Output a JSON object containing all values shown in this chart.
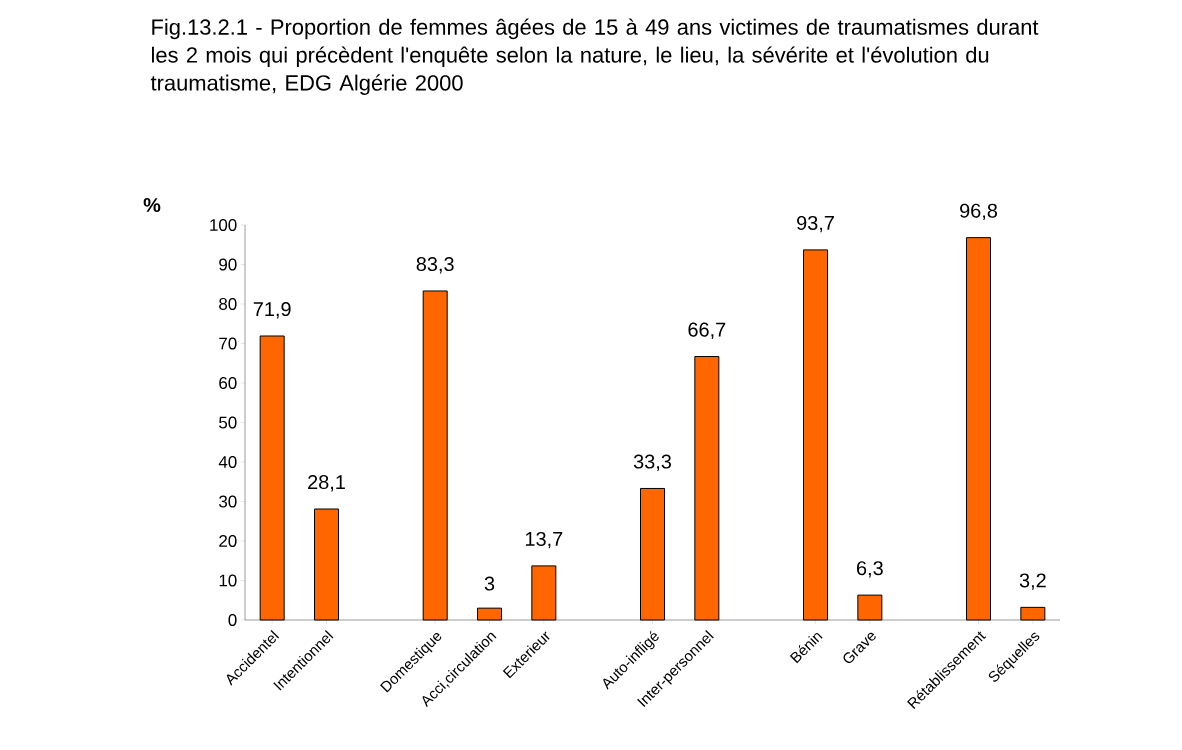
{
  "chart_data": {
    "type": "bar",
    "title": "Fig.13.2.1 - Proportion de femmes âgées de 15 à 49 ans victimes de traumatismes durant les 2 mois qui précèdent l'enquête selon la nature, le lieu, la sévérite et l'évolution du traumatisme, EDG Algérie 2000",
    "ylabel": "%",
    "categories": [
      "Accidentel",
      "Intentionnel",
      null,
      "Domestique",
      "Acci,circulation",
      "Exterieur",
      null,
      "Auto-infligé",
      "Inter-personnel",
      null,
      "Bénin",
      "Grave",
      null,
      "Rétablissement",
      "Séquelles"
    ],
    "values": [
      71.9,
      28.1,
      null,
      83.3,
      3,
      13.7,
      null,
      33.3,
      66.7,
      null,
      93.7,
      6.3,
      null,
      96.8,
      3.2
    ],
    "value_labels": [
      "71,9",
      "28,1",
      null,
      "83,3",
      "3",
      "13,7",
      null,
      "33,3",
      "66,7",
      null,
      "93,7",
      "6,3",
      null,
      "96,8",
      "3,2"
    ],
    "color": "#ff6600",
    "ylim": [
      0,
      100
    ],
    "yticks": [
      0,
      10,
      20,
      30,
      40,
      50,
      60,
      70,
      80,
      90,
      100
    ]
  }
}
